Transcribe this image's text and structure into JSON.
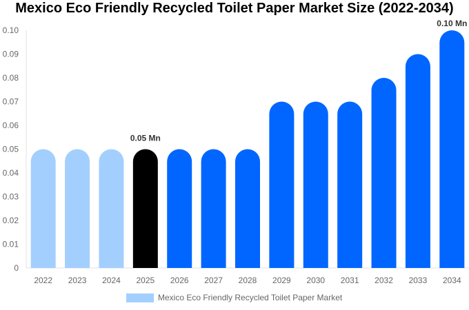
{
  "chart_data": {
    "type": "bar",
    "title": "Mexico Eco Friendly Recycled Toilet Paper Market Size (2022-2034)",
    "categories": [
      "2022",
      "2023",
      "2024",
      "2025",
      "2026",
      "2027",
      "2028",
      "2029",
      "2030",
      "2031",
      "2032",
      "2033",
      "2034"
    ],
    "series": [
      {
        "name": "Mexico Eco Friendly Recycled Toilet Paper Market",
        "values": [
          0.05,
          0.05,
          0.05,
          0.05,
          0.05,
          0.05,
          0.05,
          0.07,
          0.07,
          0.07,
          0.08,
          0.09,
          0.1
        ]
      }
    ],
    "bar_colors": [
      "#a3cfff",
      "#a3cfff",
      "#a3cfff",
      "#000000",
      "#0066ff",
      "#0066ff",
      "#0066ff",
      "#0066ff",
      "#0066ff",
      "#0066ff",
      "#0066ff",
      "#0066ff",
      "#0066ff"
    ],
    "data_labels": [
      {
        "index": 3,
        "text": "0.05 Mn"
      },
      {
        "index": 12,
        "text": "0.10 Mn"
      }
    ],
    "yticks": [
      "0",
      "0.01",
      "0.02",
      "0.03",
      "0.04",
      "0.05",
      "0.06",
      "0.07",
      "0.08",
      "0.09",
      "0.10"
    ],
    "ylim": [
      0,
      0.1
    ],
    "xlabel": "",
    "ylabel": "",
    "legend": {
      "position": "bottom",
      "label": "Mexico Eco Friendly Recycled Toilet Paper Market",
      "color": "#a3cfff"
    }
  }
}
